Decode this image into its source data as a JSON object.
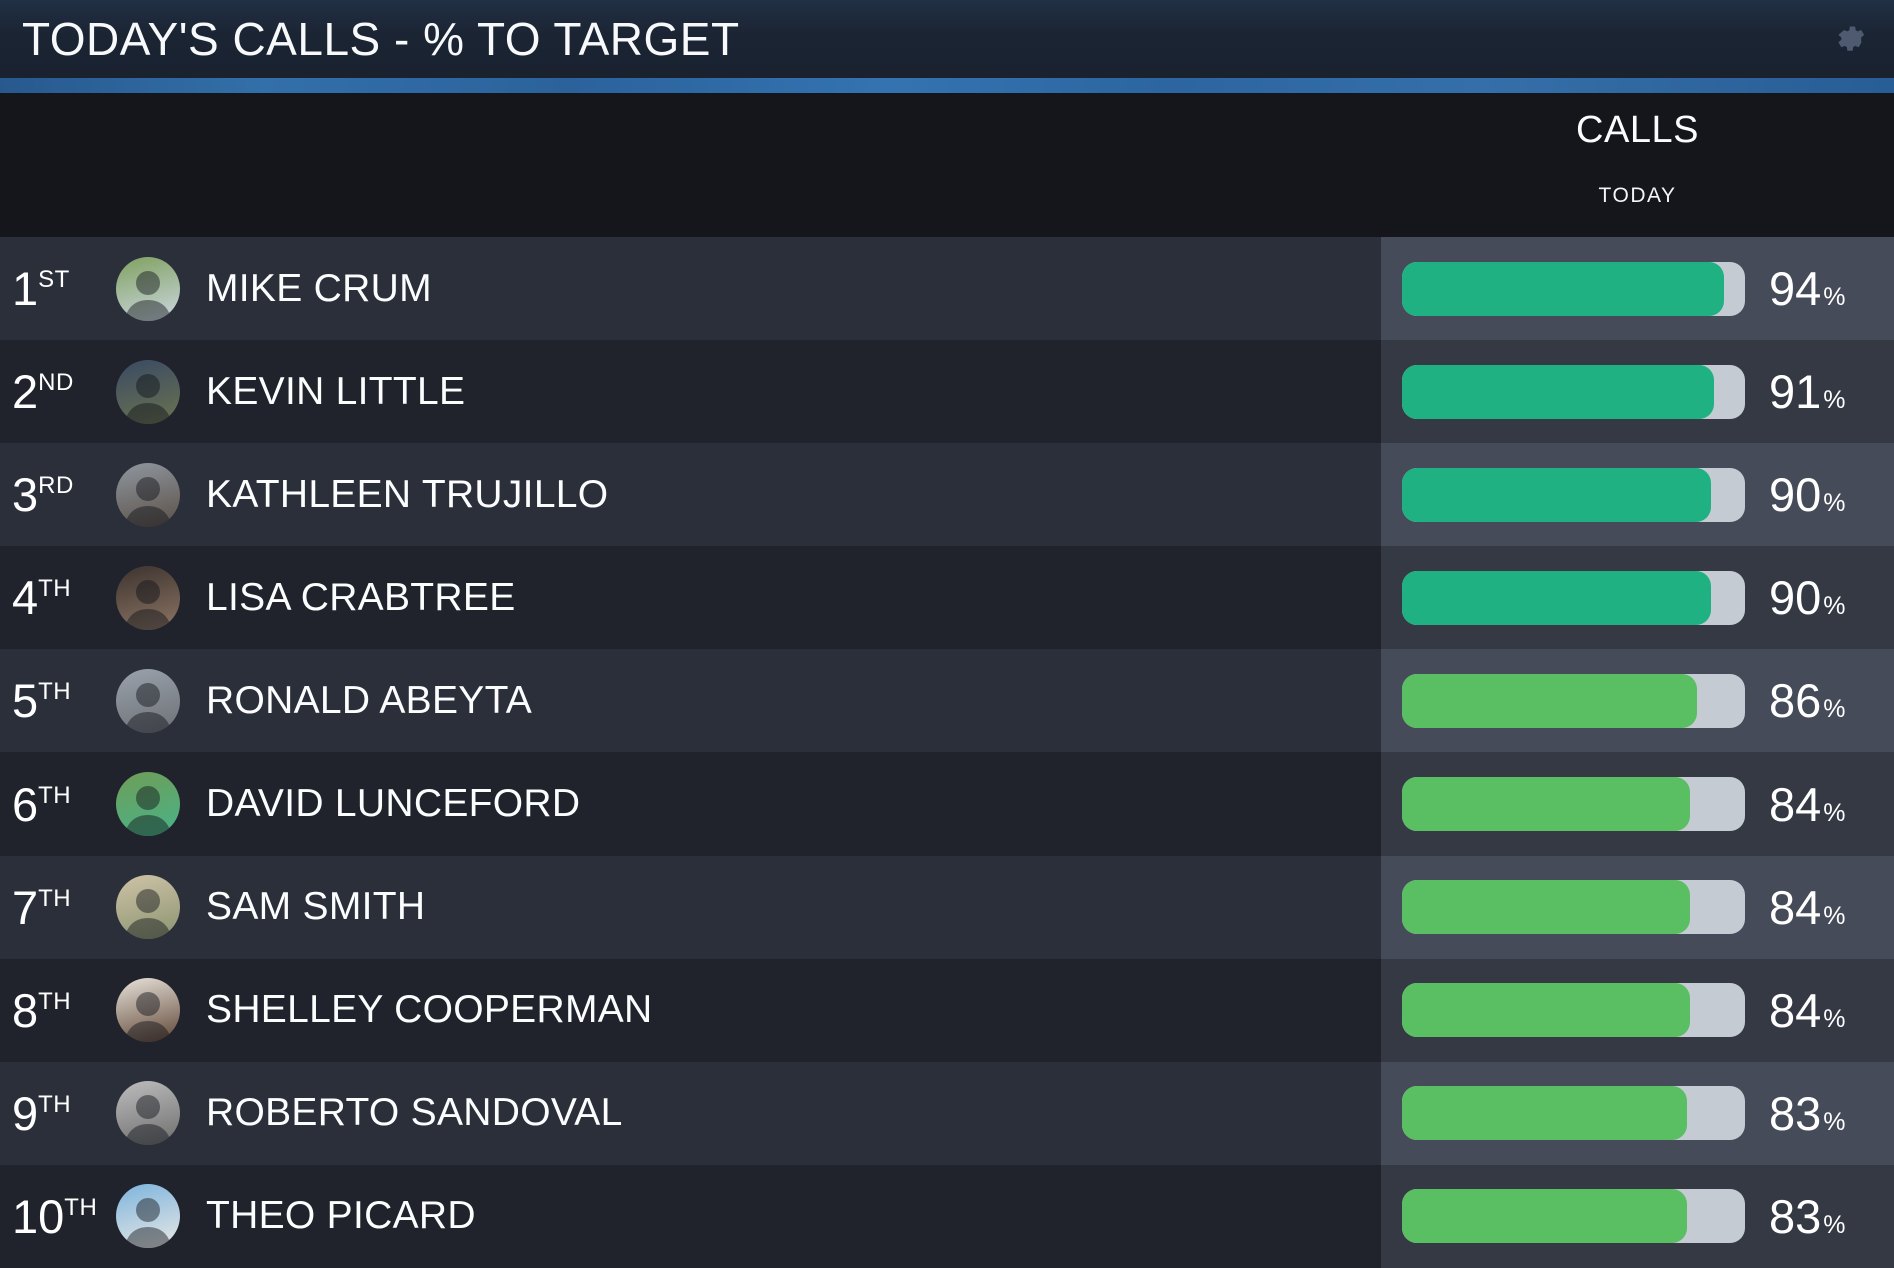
{
  "widget": {
    "title": "TODAY'S CALLS - % TO TARGET",
    "column_group": "CALLS",
    "column_sub": "TODAY",
    "value_suffix": "%"
  },
  "colors": {
    "header_bg": "#1b2433",
    "accent_blue": "#3172af",
    "subheader_bg": "#14161b",
    "row_odd_bg": "#2b2f3a",
    "row_even_bg": "#20232c",
    "value_col_odd_bg": "#454b58",
    "value_col_even_bg": "#343944",
    "track": "#c5cbd3",
    "teal_green": "#1fb181",
    "light_green": "#5abe62",
    "gear_gray": "#4e5a70"
  },
  "leaderboard": [
    {
      "rank": "1",
      "ordinal": "ST",
      "name": "MIKE CRUM",
      "value": 94,
      "bar_color": "teal_green",
      "avatar_colors": [
        "#7fa05f",
        "#cdd8e2"
      ]
    },
    {
      "rank": "2",
      "ordinal": "ND",
      "name": "KEVIN LITTLE",
      "value": 91,
      "bar_color": "teal_green",
      "avatar_colors": [
        "#3a4a63",
        "#6b7350"
      ]
    },
    {
      "rank": "3",
      "ordinal": "RD",
      "name": "KATHLEEN TRUJILLO",
      "value": 90,
      "bar_color": "teal_green",
      "avatar_colors": [
        "#9097a0",
        "#5a5046"
      ]
    },
    {
      "rank": "4",
      "ordinal": "TH",
      "name": "LISA CRABTREE",
      "value": 90,
      "bar_color": "teal_green",
      "avatar_colors": [
        "#3c332e",
        "#8d7565"
      ]
    },
    {
      "rank": "5",
      "ordinal": "TH",
      "name": "RONALD ABEYTA",
      "value": 86,
      "bar_color": "light_green",
      "avatar_colors": [
        "#9aa2ab",
        "#6d7076"
      ]
    },
    {
      "rank": "6",
      "ordinal": "TH",
      "name": "DAVID LUNCEFORD",
      "value": 84,
      "bar_color": "light_green",
      "avatar_colors": [
        "#6e9d58",
        "#49b388"
      ]
    },
    {
      "rank": "7",
      "ordinal": "TH",
      "name": "SAM SMITH",
      "value": 84,
      "bar_color": "light_green",
      "avatar_colors": [
        "#cfc3a8",
        "#8a9470"
      ]
    },
    {
      "rank": "8",
      "ordinal": "TH",
      "name": "SHELLEY COOPERMAN",
      "value": 84,
      "bar_color": "light_green",
      "avatar_colors": [
        "#e8e2da",
        "#5f4636"
      ]
    },
    {
      "rank": "9",
      "ordinal": "TH",
      "name": "ROBERTO SANDOVAL",
      "value": 83,
      "bar_color": "light_green",
      "avatar_colors": [
        "#bdbdbd",
        "#6e6e6e"
      ]
    },
    {
      "rank": "10",
      "ordinal": "TH",
      "name": "THEO PICARD",
      "value": 83,
      "bar_color": "light_green",
      "avatar_colors": [
        "#7db4dd",
        "#e9e8e4"
      ]
    }
  ],
  "chart_data": {
    "type": "bar",
    "orientation": "horizontal",
    "title": "TODAY'S CALLS - % TO TARGET",
    "column_header": "CALLS TODAY",
    "categories": [
      "MIKE CRUM",
      "KEVIN LITTLE",
      "KATHLEEN TRUJILLO",
      "LISA CRABTREE",
      "RONALD ABEYTA",
      "DAVID LUNCEFORD",
      "SAM SMITH",
      "SHELLEY COOPERMAN",
      "ROBERTO SANDOVAL",
      "THEO PICARD"
    ],
    "values": [
      94,
      91,
      90,
      90,
      86,
      84,
      84,
      84,
      83,
      83
    ],
    "value_unit": "%",
    "xlim": [
      0,
      100
    ],
    "legend": "off",
    "grid": "off"
  }
}
